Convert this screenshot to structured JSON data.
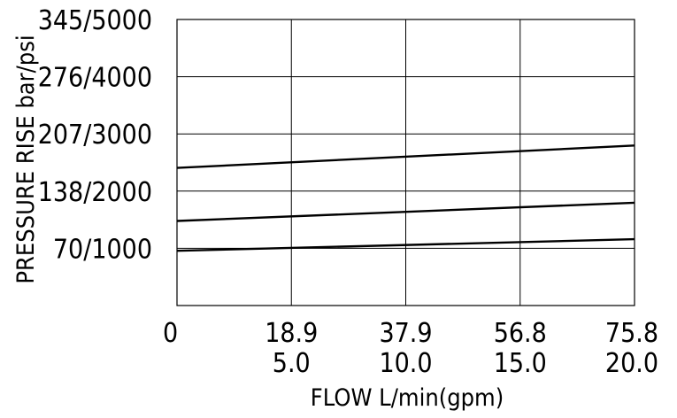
{
  "chart_data": {
    "type": "line",
    "xlabel": "FLOW L/min(gpm)",
    "ylabel": "PRESSURE RISE bar/psi",
    "x_ticks_lpm": [
      "0",
      "18.9",
      "37.9",
      "56.8",
      "75.8"
    ],
    "x_ticks_gpm": [
      "",
      "5.0",
      "10.0",
      "15.0",
      "20.0"
    ],
    "y_ticks": [
      "70/1000",
      "138/2000",
      "207/3000",
      "276/4000",
      "345/5000"
    ],
    "xlim_lpm": [
      0,
      75.8
    ],
    "ylim_bar": [
      0,
      345
    ],
    "grid": true,
    "series": [
      {
        "x": [
          0,
          75.8
        ],
        "y": [
          66,
          80
        ]
      },
      {
        "x": [
          0,
          75.8
        ],
        "y": [
          102,
          124
        ]
      },
      {
        "x": [
          0,
          75.8
        ],
        "y": [
          166,
          193
        ]
      }
    ]
  }
}
